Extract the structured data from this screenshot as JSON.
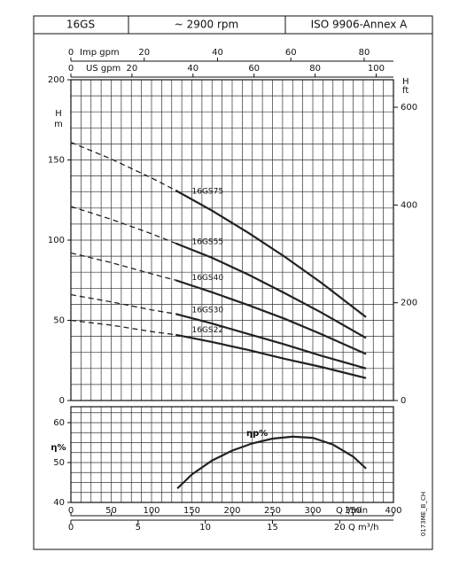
{
  "header": {
    "pump": "16GS",
    "speed": "~ 2900 rpm",
    "standard": "ISO 9906-Annex A"
  },
  "code": "0173ME_B_CH",
  "chart_data": [
    {
      "type": "line",
      "y_label": "H",
      "y_unit": "m",
      "y2_label": "H",
      "y2_unit": "ft",
      "xlim": [
        0,
        400
      ],
      "ylim": [
        0,
        200
      ],
      "yticks": [
        0,
        50,
        100,
        150,
        200
      ],
      "y2lim": [
        0,
        656.2
      ],
      "y2ticks": [
        0,
        200,
        400,
        600
      ],
      "minor_grid": {
        "x_step": 12.5,
        "y_step": 10
      },
      "dash_to_x": 130,
      "top_axes": [
        {
          "label": "Imp gpm",
          "lim": [
            0,
            87.99
          ],
          "ticks": [
            0,
            20,
            40,
            60,
            80
          ]
        },
        {
          "label": "US gpm",
          "lim": [
            0,
            105.67
          ],
          "ticks": [
            0,
            20,
            40,
            60,
            80,
            100
          ]
        }
      ],
      "x": [
        0,
        50,
        100,
        130,
        175,
        220,
        265,
        310,
        366
      ],
      "series": [
        {
          "name": "16GS75",
          "color": "#222222",
          "values": [
            161,
            150.6,
            138.8,
            131,
            118.4,
            104.6,
            89.7,
            73.6,
            52
          ]
        },
        {
          "name": "16GS55",
          "color": "#222222",
          "values": [
            121,
            113,
            104,
            98,
            89,
            78.5,
            67,
            55,
            39
          ]
        },
        {
          "name": "16GS40",
          "color": "#222222",
          "values": [
            92,
            86,
            79,
            75,
            67.5,
            59.5,
            51,
            41.5,
            29
          ]
        },
        {
          "name": "16GS30",
          "color": "#222222",
          "values": [
            66,
            61.5,
            56.5,
            54,
            48,
            41.5,
            35,
            28,
            20
          ]
        },
        {
          "name": "16GS22",
          "color": "#222222",
          "values": [
            50,
            47,
            43,
            41,
            36.5,
            31.5,
            26,
            21,
            14
          ]
        }
      ]
    },
    {
      "type": "line",
      "y_label": "η%",
      "annotation": "ηp%",
      "xlim": [
        0,
        400
      ],
      "ylim": [
        40,
        64
      ],
      "yticks": [
        40,
        50,
        60
      ],
      "xticks": [
        0,
        50,
        100,
        150,
        200,
        250,
        300,
        350,
        400
      ],
      "x_label": "Q l/min",
      "minor_grid": {
        "x_step": 12.5,
        "y_step": 2.5
      },
      "bottom_axis": {
        "label": "Q m³/h",
        "lim": [
          0,
          24
        ],
        "ticks": [
          0,
          5,
          10,
          15,
          20
        ]
      },
      "x": [
        132,
        150,
        175,
        200,
        225,
        250,
        275,
        300,
        325,
        350,
        366
      ],
      "series": [
        {
          "color": "#222222",
          "values": [
            43.5,
            47,
            50.5,
            53,
            54.8,
            56,
            56.5,
            56.2,
            54.5,
            51.5,
            48.5
          ]
        }
      ]
    }
  ]
}
